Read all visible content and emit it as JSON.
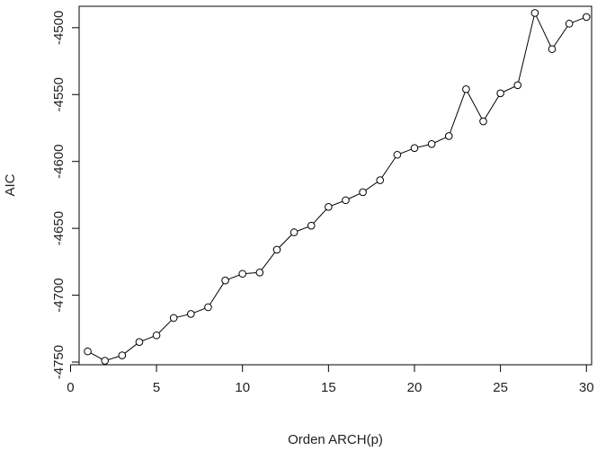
{
  "chart_data": {
    "type": "line",
    "xlabel": "Orden ARCH(p)",
    "ylabel": "AIC",
    "x": [
      1,
      2,
      3,
      4,
      5,
      6,
      7,
      8,
      9,
      10,
      11,
      12,
      13,
      14,
      15,
      16,
      17,
      18,
      19,
      20,
      21,
      22,
      23,
      24,
      25,
      26,
      27,
      28,
      29,
      30
    ],
    "series": [
      {
        "values": [
          -4742,
          -4749,
          -4745,
          -4735,
          -4730,
          -4717,
          -4714,
          -4709,
          -4689,
          -4684,
          -4683,
          -4666,
          -4653,
          -4648,
          -4634,
          -4629,
          -4623,
          -4614,
          -4595,
          -4590,
          -4587,
          -4581,
          -4546,
          -4570,
          -4549,
          -4543,
          -4489,
          -4516,
          -4497,
          -4492
        ],
        "color": "#000000",
        "marker": "open-circle"
      }
    ],
    "xlim": [
      0.5,
      30.3
    ],
    "ylim": [
      -4752,
      -4484
    ],
    "xticks": [
      0,
      5,
      10,
      15,
      20,
      25,
      30
    ],
    "yticks": [
      -4750,
      -4700,
      -4650,
      -4600,
      -4550,
      -4500
    ],
    "xtick_labels": [
      "0",
      "5",
      "10",
      "15",
      "20",
      "25",
      "30"
    ],
    "ytick_labels": [
      "-4750",
      "-4700",
      "-4650",
      "-4600",
      "-4550",
      "-4500"
    ],
    "grid": false,
    "legend": "none"
  }
}
